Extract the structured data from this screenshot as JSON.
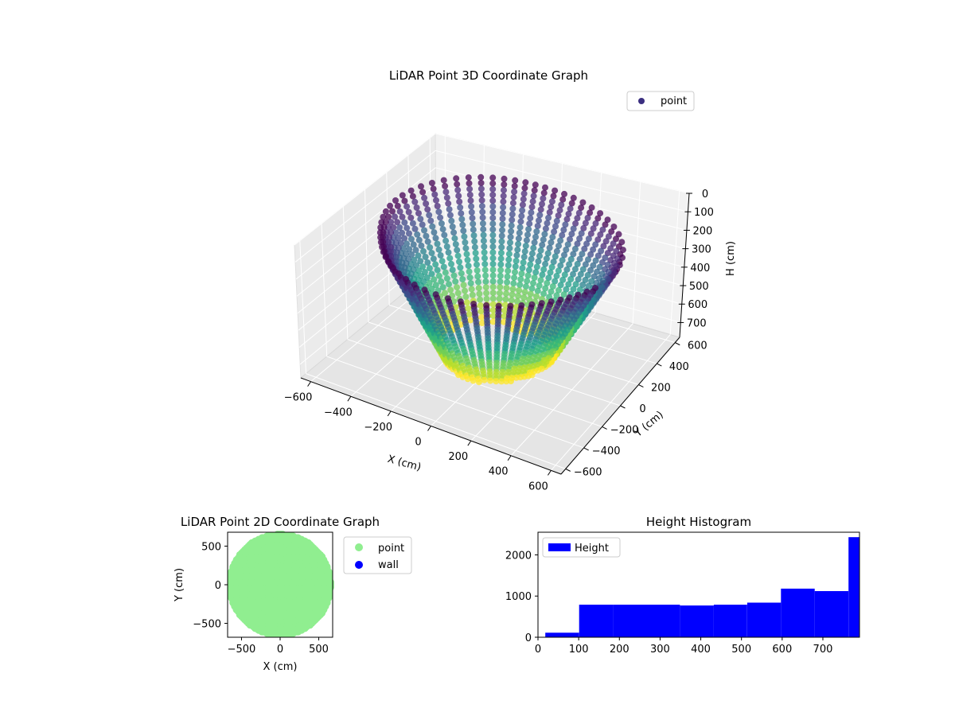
{
  "chart_data": [
    {
      "type": "scatter3d",
      "title": "LiDAR Point 3D Coordinate Graph",
      "xlabel": "X (cm)",
      "ylabel": "Y (cm)",
      "zlabel": "H (cm)",
      "xlim": [
        -650,
        650
      ],
      "ylim": [
        -650,
        650
      ],
      "zlim": [
        0,
        780
      ],
      "z_inverted": true,
      "x_ticks": [
        "−600",
        "−400",
        "−200",
        "0",
        "200",
        "400",
        "600"
      ],
      "y_ticks": [
        "−600",
        "−400",
        "−200",
        "0",
        "200",
        "400",
        "600"
      ],
      "z_ticks": [
        "0",
        "100",
        "200",
        "300",
        "400",
        "500",
        "600",
        "700"
      ],
      "colormap": "viridis",
      "legend": {
        "placement": "top-right",
        "entries": [
          {
            "name": "point",
            "color": "#3b2f80"
          }
        ]
      },
      "grid": true
    },
    {
      "type": "scatter",
      "title": "LiDAR Point 2D Coordinate Graph",
      "xlabel": "X (cm)",
      "ylabel": "Y (cm)",
      "xlim": [
        -680,
        680
      ],
      "ylim": [
        -680,
        680
      ],
      "x_ticks": [
        "−500",
        "0",
        "500"
      ],
      "y_ticks": [
        "−500",
        "0",
        "500"
      ],
      "legend": {
        "placement": "outside-right",
        "entries": [
          {
            "name": "point",
            "color": "#90ee90"
          },
          {
            "name": "wall",
            "color": "#0000ff"
          }
        ]
      },
      "series": [
        {
          "name": "point",
          "color": "#90ee90",
          "shape": "filled-disc",
          "radius": 650
        },
        {
          "name": "wall",
          "color": "#0000ff",
          "values": []
        }
      ]
    },
    {
      "type": "bar",
      "title": "Height Histogram",
      "xlabel": "",
      "ylabel": "",
      "xlim": [
        0,
        790
      ],
      "ylim": [
        0,
        2550
      ],
      "x_ticks": [
        "0",
        "100",
        "200",
        "300",
        "400",
        "500",
        "600",
        "700"
      ],
      "y_ticks": [
        "0",
        "1000",
        "2000"
      ],
      "color": "#0000ff",
      "legend": {
        "placement": "top-left",
        "entries": [
          {
            "name": "Height",
            "color": "#0000ff"
          }
        ]
      },
      "bins": [
        {
          "x0": 18,
          "x1": 101,
          "value": 110
        },
        {
          "x0": 101,
          "x1": 184,
          "value": 790
        },
        {
          "x0": 184,
          "x1": 266,
          "value": 790
        },
        {
          "x0": 266,
          "x1": 349,
          "value": 790
        },
        {
          "x0": 349,
          "x1": 432,
          "value": 770
        },
        {
          "x0": 432,
          "x1": 514,
          "value": 790
        },
        {
          "x0": 514,
          "x1": 597,
          "value": 840
        },
        {
          "x0": 597,
          "x1": 680,
          "value": 1180
        },
        {
          "x0": 680,
          "x1": 763,
          "value": 1120
        },
        {
          "x0": 763,
          "x1": 790,
          "value": 2430
        }
      ]
    }
  ]
}
